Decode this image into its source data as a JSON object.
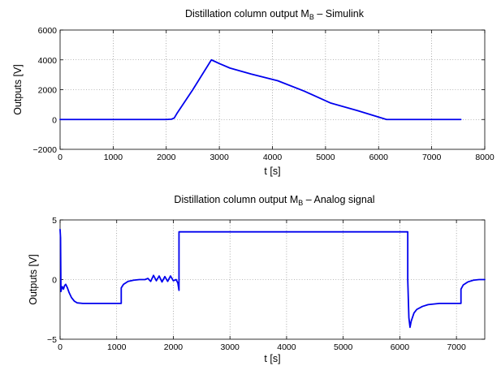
{
  "colors": {
    "line": "#0000ee"
  },
  "chart_data": [
    {
      "type": "line",
      "title": {
        "main": "Distillation column output M",
        "sub": "B",
        "rest": " – Simulink"
      },
      "xlabel": "t [s]",
      "ylabel": "Outputs [V]",
      "xlim": [
        0,
        8000
      ],
      "ylim": [
        -2000,
        6000
      ],
      "xticks": [
        0,
        1000,
        2000,
        3000,
        4000,
        5000,
        6000,
        7000,
        8000
      ],
      "yticks": [
        -2000,
        0,
        2000,
        4000,
        6000
      ],
      "xtick_labels": [
        "0",
        "1000",
        "2000",
        "3000",
        "4000",
        "5000",
        "6000",
        "7000",
        "8000"
      ],
      "ytick_labels": [
        "−2000",
        "0",
        "2000",
        "4000",
        "6000"
      ],
      "grid": true,
      "series": [
        {
          "x": [
            0,
            1000,
            2000,
            2100,
            2150,
            2200,
            2500,
            2850,
            3000,
            3200,
            3600,
            4100,
            4600,
            5100,
            5600,
            6150,
            6200,
            7000,
            7550
          ],
          "y": [
            0,
            0,
            0,
            20,
            100,
            400,
            2000,
            4000,
            3750,
            3450,
            3050,
            2600,
            1900,
            1100,
            600,
            0,
            0,
            0,
            0
          ]
        }
      ]
    },
    {
      "type": "line",
      "title": {
        "main": "Distillation column output M",
        "sub": "B",
        "rest": " – Analog signal"
      },
      "xlabel": "t [s]",
      "ylabel": "Outputs [V]",
      "xlim": [
        0,
        7500
      ],
      "ylim": [
        -5,
        5
      ],
      "xticks": [
        0,
        1000,
        2000,
        3000,
        4000,
        5000,
        6000,
        7000
      ],
      "yticks": [
        -5,
        0,
        5
      ],
      "xtick_labels": [
        "0",
        "1000",
        "2000",
        "3000",
        "4000",
        "5000",
        "6000",
        "7000"
      ],
      "ytick_labels": [
        "−5",
        "0",
        "5"
      ],
      "grid": true,
      "series": [
        {
          "x": [
            0,
            8,
            15,
            25,
            40,
            60,
            80,
            100,
            130,
            160,
            200,
            250,
            300,
            400,
            600,
            800,
            1000,
            1080,
            1080,
            1120,
            1200,
            1300,
            1400,
            1500,
            1550,
            1600,
            1650,
            1700,
            1750,
            1800,
            1850,
            1900,
            1950,
            2000,
            2050,
            2080,
            2100,
            2100,
            2110,
            2200,
            3000,
            4000,
            5000,
            6000,
            6140,
            6140,
            6160,
            6180,
            6200,
            6250,
            6300,
            6400,
            6500,
            6700,
            6900,
            7000,
            7080,
            7080,
            7120,
            7200,
            7300,
            7400,
            7500
          ],
          "y": [
            4.2,
            3.5,
            -1,
            -0.8,
            -0.6,
            -0.8,
            -0.5,
            -0.4,
            -0.7,
            -1.1,
            -1.5,
            -1.8,
            -1.95,
            -2.0,
            -2.0,
            -2.0,
            -2.0,
            -2.0,
            -0.7,
            -0.4,
            -0.15,
            -0.05,
            0,
            0,
            0.1,
            -0.15,
            0.35,
            -0.1,
            0.3,
            -0.2,
            0.25,
            -0.15,
            0.3,
            -0.1,
            0,
            -0.3,
            -0.9,
            4,
            4,
            4,
            4,
            4,
            4,
            4,
            4,
            0,
            -3.2,
            -4.0,
            -3.5,
            -2.8,
            -2.5,
            -2.25,
            -2.1,
            -2.0,
            -2.0,
            -2.0,
            -2.0,
            -0.8,
            -0.45,
            -0.2,
            -0.05,
            0,
            0
          ]
        }
      ]
    }
  ]
}
